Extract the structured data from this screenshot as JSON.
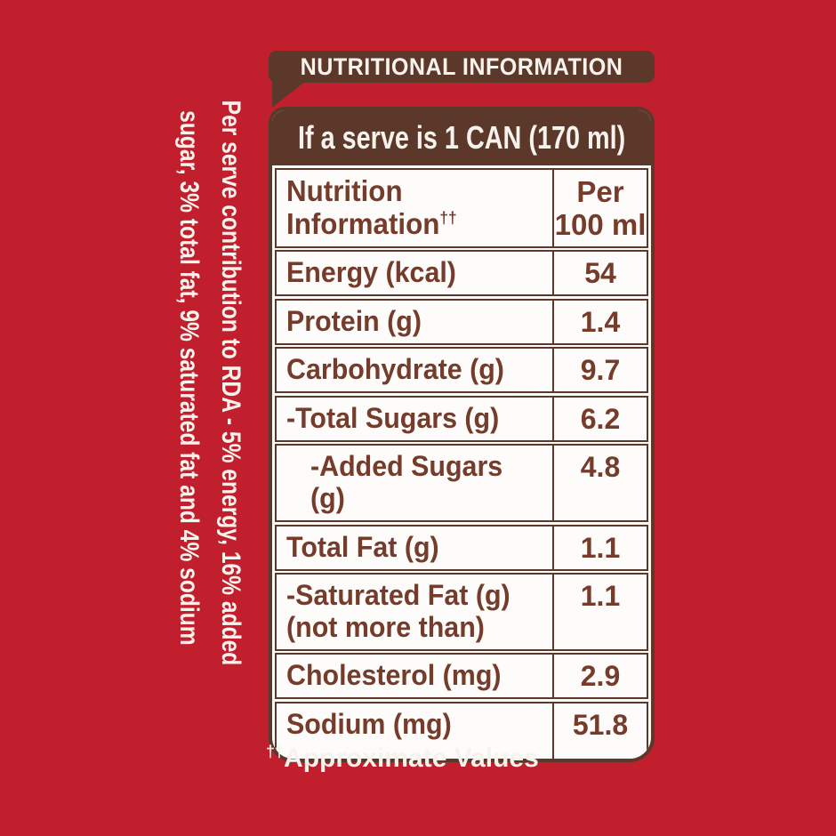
{
  "colors": {
    "background_red": "#c11f2d",
    "dark_brown": "#5c382b",
    "table_text_brown": "#753c2b",
    "off_white": "#f7f3ec",
    "cell_white": "#fdfcfa"
  },
  "title_bar": {
    "label": "NUTRITIONAL INFORMATION"
  },
  "side_note": {
    "line1": "Per serve contribution to RDA - 5% energy, 16% added",
    "line2": "sugar, 3% total fat, 9% saturated fat and 4% sodium"
  },
  "table": {
    "serve_header": "If a serve is 1 CAN (170 ml)",
    "columns": {
      "name_line1": "Nutrition",
      "name_line2": "Information",
      "name_sup": "††",
      "value_line1": "Per",
      "value_line2": "100 ml"
    },
    "rows": [
      {
        "label": "Energy (kcal)",
        "value": "54"
      },
      {
        "label": "Protein (g)",
        "value": "1.4"
      },
      {
        "label": "Carbohydrate (g)",
        "value": "9.7"
      },
      {
        "label": "-Total Sugars (g)",
        "value": "6.2"
      },
      {
        "label": "-Added Sugars (g)",
        "value": "4.8",
        "indent": true
      },
      {
        "label": "Total Fat (g)",
        "value": "1.1"
      },
      {
        "label": "-Saturated Fat (g)\n(not more than)",
        "value": "1.1"
      },
      {
        "label": "Cholesterol (mg)",
        "value": "2.9"
      },
      {
        "label": "Sodium (mg)",
        "value": "51.8"
      }
    ]
  },
  "footnote": {
    "sup": "††",
    "text": "Approximate Values"
  }
}
